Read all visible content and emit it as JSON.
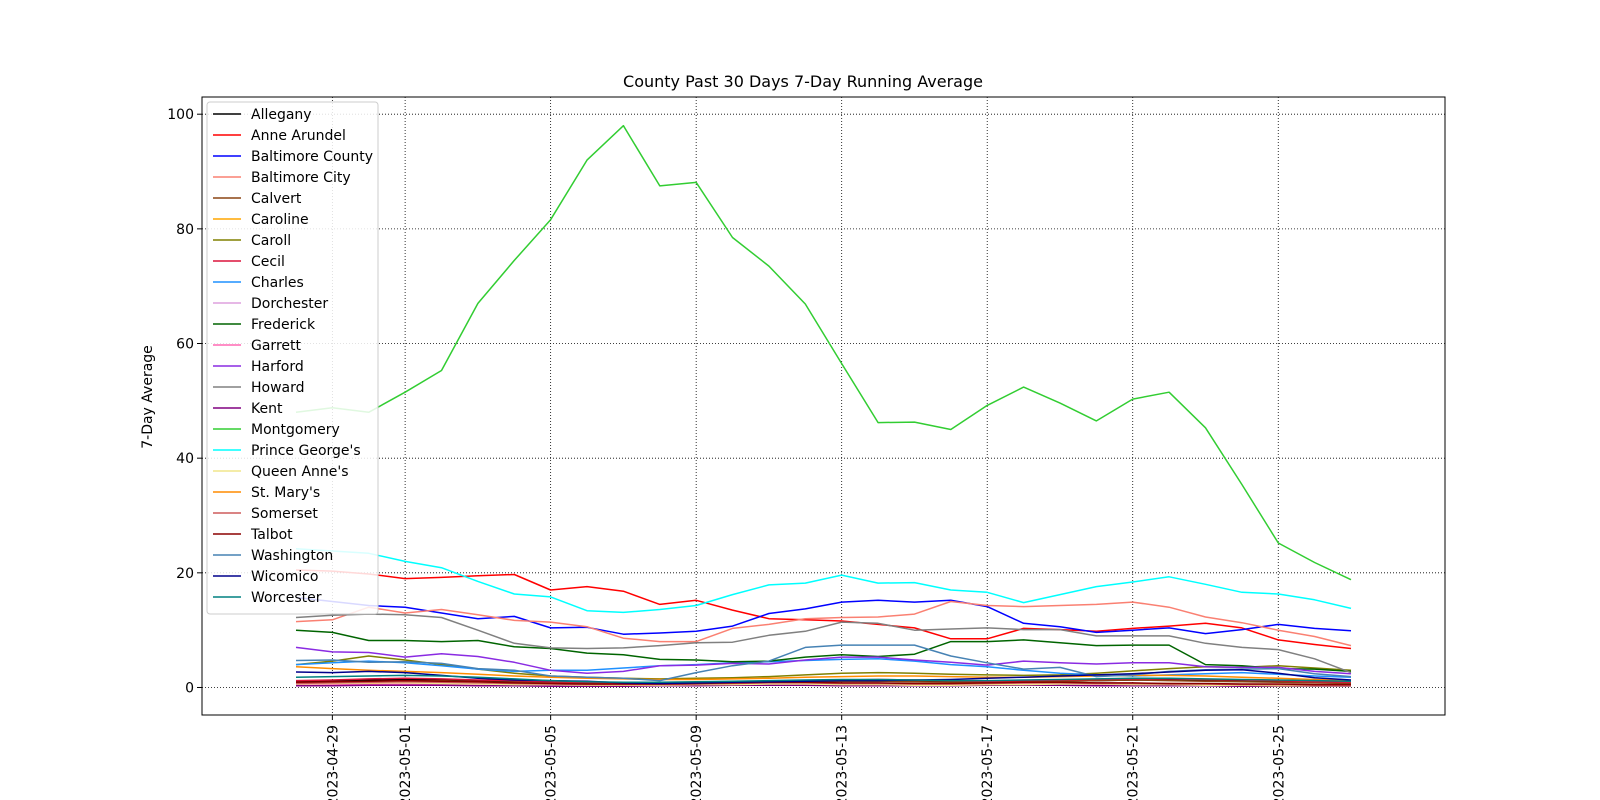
{
  "chart_data": {
    "type": "line",
    "title": "County Past 30 Days 7-Day Running Average",
    "xlabel": "",
    "ylabel": "7-Day Average",
    "x": [
      "2023-04-28",
      "2023-04-29",
      "2023-04-30",
      "2023-05-01",
      "2023-05-02",
      "2023-05-03",
      "2023-05-04",
      "2023-05-05",
      "2023-05-06",
      "2023-05-07",
      "2023-05-08",
      "2023-05-09",
      "2023-05-10",
      "2023-05-11",
      "2023-05-12",
      "2023-05-13",
      "2023-05-14",
      "2023-05-15",
      "2023-05-16",
      "2023-05-17",
      "2023-05-18",
      "2023-05-19",
      "2023-05-20",
      "2023-05-21",
      "2023-05-22",
      "2023-05-23",
      "2023-05-24",
      "2023-05-25",
      "2023-05-26",
      "2023-05-27"
    ],
    "x_ticks": [
      "2023-04-29",
      "2023-05-01",
      "2023-05-05",
      "2023-05-09",
      "2023-05-13",
      "2023-05-17",
      "2023-05-21",
      "2023-05-25"
    ],
    "xlim": [
      "2023-04-25T10:00",
      "2023-05-29T14:00"
    ],
    "ylim": [
      -4.8,
      103
    ],
    "y_ticks": [
      0,
      20,
      40,
      60,
      80,
      100
    ],
    "grid": true,
    "legend_position": "upper-left",
    "series": [
      {
        "name": "Allegany",
        "color": "#000000",
        "values": [
          1,
          1.2,
          1.3,
          1.4,
          1.3,
          1.2,
          1.1,
          1,
          0.9,
          0.8,
          0.7,
          0.7,
          0.8,
          0.9,
          1,
          1.1,
          1.2,
          1.2,
          1.1,
          1,
          1,
          1.1,
          1.2,
          1.3,
          1.3,
          1.2,
          1.1,
          1,
          1,
          1
        ]
      },
      {
        "name": "Anne Arundel",
        "color": "#ff0000",
        "values": [
          20.5,
          20.3,
          19.8,
          19,
          19.2,
          19.5,
          19.7,
          17,
          17.6,
          16.8,
          14.5,
          15.2,
          13.5,
          12,
          11.8,
          11.6,
          11,
          10.4,
          8.5,
          8.5,
          10.3,
          10.1,
          9.8,
          10.3,
          10.7,
          11.2,
          10.4,
          8.3,
          7.5,
          6.8
        ]
      },
      {
        "name": "Baltimore County",
        "color": "#0000ff",
        "values": [
          15.7,
          15,
          14.3,
          14,
          13,
          12,
          12.4,
          10.4,
          10.5,
          9.3,
          9.5,
          9.8,
          10.7,
          12.9,
          13.7,
          14.9,
          15.2,
          14.9,
          15.2,
          14.1,
          11.2,
          10.6,
          9.6,
          10,
          10.4,
          9.4,
          10.1,
          11,
          10.3,
          9.9
        ]
      },
      {
        "name": "Baltimore City",
        "color": "#fa8072",
        "values": [
          11.5,
          11.8,
          14,
          13,
          13.6,
          12.7,
          11.7,
          11.4,
          10.6,
          8.6,
          8,
          8,
          10.3,
          11,
          12,
          12.2,
          12.3,
          12.8,
          15,
          14.3,
          14.1,
          14.3,
          14.5,
          14.9,
          14,
          12.3,
          11.3,
          10,
          8.9,
          7.3
        ]
      },
      {
        "name": "Calvert",
        "color": "#8b4513",
        "values": [
          0.8,
          0.9,
          1,
          1.1,
          1.2,
          1,
          0.9,
          0.8,
          0.7,
          0.6,
          0.6,
          0.7,
          0.8,
          0.9,
          1,
          1.1,
          1.1,
          1,
          0.9,
          0.9,
          1,
          1.1,
          1.2,
          1.3,
          1.2,
          1.1,
          1,
          0.9,
          0.8,
          0.7
        ]
      },
      {
        "name": "Caroline",
        "color": "#ffa500",
        "values": [
          0.5,
          0.6,
          0.7,
          0.8,
          0.7,
          0.6,
          0.5,
          0.5,
          0.4,
          0.4,
          0.5,
          0.6,
          0.6,
          0.5,
          0.5,
          0.4,
          0.4,
          0.5,
          0.6,
          0.7,
          0.6,
          0.5,
          0.5,
          0.6,
          0.7,
          0.6,
          0.5,
          0.5,
          0.4,
          0.4
        ]
      },
      {
        "name": "Caroll",
        "color": "#808000",
        "values": [
          4,
          4.6,
          5.5,
          4.8,
          4,
          3.2,
          2.5,
          2,
          1.8,
          1.6,
          1.5,
          1.6,
          1.7,
          1.9,
          2.2,
          2.5,
          2.6,
          2.5,
          2.3,
          2.2,
          2.1,
          2.2,
          2.5,
          2.9,
          3.3,
          3.6,
          3.5,
          3.8,
          3.4,
          3
        ]
      },
      {
        "name": "Cecil",
        "color": "#dc143c",
        "values": [
          1.2,
          1.3,
          1.5,
          1.6,
          1.5,
          1.3,
          1.2,
          1,
          0.9,
          0.8,
          0.8,
          0.9,
          1,
          1.1,
          1.2,
          1.3,
          1.4,
          1.3,
          1.2,
          1.1,
          1.2,
          1.3,
          1.4,
          1.5,
          1.5,
          1.4,
          1.3,
          1.2,
          1,
          0.9
        ]
      },
      {
        "name": "Charles",
        "color": "#1e90ff",
        "values": [
          4,
          4.3,
          4.6,
          4.3,
          3.8,
          3.2,
          2.8,
          3,
          3,
          3.4,
          3.8,
          4,
          4.3,
          4.5,
          4.7,
          4.9,
          5,
          4.6,
          4,
          3.6,
          3,
          2.5,
          2.2,
          2,
          2.2,
          2.4,
          2.6,
          2.3,
          2,
          1.8
        ]
      },
      {
        "name": "Dorchester",
        "color": "#dda0dd",
        "values": [
          0.6,
          0.7,
          0.8,
          0.9,
          0.8,
          0.7,
          0.6,
          0.5,
          0.5,
          0.4,
          0.4,
          0.5,
          0.6,
          0.7,
          0.7,
          0.6,
          0.6,
          0.5,
          0.5,
          0.6,
          0.7,
          0.8,
          0.8,
          0.7,
          0.6,
          0.6,
          0.5,
          0.5,
          0.4,
          0.4
        ]
      },
      {
        "name": "Frederick",
        "color": "#006400",
        "values": [
          10,
          9.6,
          8.2,
          8.2,
          8,
          8.2,
          7.1,
          6.8,
          6,
          5.7,
          4.9,
          4.8,
          4.5,
          4.6,
          5.3,
          5.7,
          5.4,
          5.8,
          8,
          8,
          8.3,
          7.8,
          7.3,
          7.4,
          7.4,
          4,
          3.8,
          3.3,
          3.2,
          2.8
        ]
      },
      {
        "name": "Garrett",
        "color": "#ff69b4",
        "values": [
          0.4,
          0.5,
          0.5,
          0.6,
          0.6,
          0.5,
          0.4,
          0.4,
          0.3,
          0.3,
          0.4,
          0.5,
          0.5,
          0.6,
          0.6,
          0.5,
          0.5,
          0.4,
          0.4,
          0.5,
          0.6,
          0.6,
          0.5,
          0.5,
          0.4,
          0.4,
          0.3,
          0.3,
          0.3,
          0.3
        ]
      },
      {
        "name": "Harford",
        "color": "#8a2be2",
        "values": [
          7,
          6.2,
          6.1,
          5.3,
          5.9,
          5.4,
          4.4,
          3,
          2.5,
          2.8,
          3.8,
          3.9,
          4.2,
          4.1,
          4.8,
          5.3,
          5.3,
          4.8,
          4.4,
          3.9,
          4.6,
          4.3,
          4.1,
          4.3,
          4.3,
          3.6,
          3.5,
          3.5,
          2.8,
          2.4
        ]
      },
      {
        "name": "Howard",
        "color": "#808080",
        "values": [
          12.2,
          12.6,
          12.8,
          12.7,
          12.2,
          10,
          7.7,
          6.9,
          6.8,
          6.9,
          7.3,
          7.8,
          7.9,
          9.1,
          9.8,
          11.4,
          11.2,
          10,
          10.2,
          10.4,
          10.1,
          10.1,
          9,
          9,
          9,
          7.7,
          7,
          6.6,
          5,
          2.6
        ]
      },
      {
        "name": "Kent",
        "color": "#800080",
        "values": [
          0.3,
          0.3,
          0.4,
          0.4,
          0.4,
          0.3,
          0.3,
          0.2,
          0.2,
          0.2,
          0.3,
          0.3,
          0.4,
          0.4,
          0.4,
          0.3,
          0.3,
          0.3,
          0.3,
          0.4,
          0.4,
          0.4,
          0.3,
          0.3,
          0.3,
          0.3,
          0.2,
          0.2,
          0.2,
          0.2
        ]
      },
      {
        "name": "Montgomery",
        "color": "#32cd32",
        "values": [
          48,
          48.8,
          48,
          51.5,
          55.3,
          67,
          74.5,
          81.6,
          92,
          98,
          87.5,
          88.1,
          78.5,
          73.5,
          66.9,
          56.5,
          46.2,
          46.3,
          45,
          49.2,
          52.4,
          49.6,
          46.5,
          50.3,
          51.5,
          45.3,
          35.4,
          25.2,
          21.8,
          18.8
        ]
      },
      {
        "name": "Prince George's",
        "color": "#00ffff",
        "values": [
          24.2,
          23.8,
          23.4,
          22,
          20.9,
          18.5,
          16.3,
          15.8,
          13.4,
          13.1,
          13.6,
          14.3,
          16.2,
          17.9,
          18.2,
          19.6,
          18.2,
          18.3,
          17,
          16.6,
          14.8,
          16.2,
          17.6,
          18.4,
          19.3,
          18,
          16.6,
          16.3,
          15.3,
          13.8
        ]
      },
      {
        "name": "Queen Anne's",
        "color": "#f0e68c",
        "values": [
          0.6,
          0.7,
          0.8,
          0.8,
          0.7,
          0.6,
          0.5,
          0.5,
          0.4,
          0.4,
          0.4,
          0.5,
          0.5,
          0.6,
          0.6,
          0.5,
          0.5,
          0.4,
          0.4,
          0.5,
          0.5,
          0.6,
          0.6,
          0.5,
          0.5,
          0.4,
          0.4,
          0.3,
          0.3,
          0.3
        ]
      },
      {
        "name": "St. Mary's",
        "color": "#ff8c00",
        "values": [
          3.6,
          3.3,
          3,
          2.8,
          2.6,
          2.3,
          2,
          1.8,
          1.6,
          1.5,
          1.4,
          1.4,
          1.5,
          1.6,
          1.8,
          1.9,
          2,
          2,
          1.9,
          1.8,
          1.8,
          1.9,
          2,
          2.1,
          2.1,
          2,
          1.8,
          1.6,
          1.4,
          1.2
        ]
      },
      {
        "name": "Somerset",
        "color": "#cd5c5c",
        "values": [
          0.7,
          0.8,
          0.9,
          1,
          0.9,
          0.8,
          0.7,
          0.6,
          0.5,
          0.5,
          0.5,
          0.6,
          0.7,
          0.8,
          0.8,
          0.7,
          0.7,
          0.6,
          0.6,
          0.7,
          0.8,
          0.8,
          0.7,
          0.7,
          0.6,
          0.6,
          0.5,
          0.5,
          0.4,
          0.4
        ]
      },
      {
        "name": "Talbot",
        "color": "#8b0000",
        "values": [
          0.9,
          1,
          1.1,
          1.2,
          1.1,
          1,
          0.8,
          0.7,
          0.6,
          0.6,
          0.6,
          0.7,
          0.8,
          0.9,
          0.9,
          0.8,
          0.8,
          0.7,
          0.7,
          0.8,
          0.9,
          0.9,
          0.8,
          0.8,
          0.7,
          0.7,
          0.6,
          0.6,
          0.5,
          0.5
        ]
      },
      {
        "name": "Washington",
        "color": "#4682b4",
        "values": [
          4.7,
          4.8,
          4.4,
          4.5,
          4.2,
          3.3,
          3,
          2,
          1.8,
          1.6,
          1.2,
          2.6,
          3.8,
          4.6,
          7,
          7.4,
          7.4,
          7.4,
          5.5,
          4.3,
          3.2,
          3.5,
          1.9,
          2.2,
          2.8,
          3.1,
          3.2,
          3.3,
          2.4,
          1.9
        ]
      },
      {
        "name": "Wicomico",
        "color": "#00008b",
        "values": [
          2.7,
          2.6,
          2.8,
          2.6,
          2.1,
          1.6,
          1.3,
          1.2,
          1.1,
          0.8,
          0.7,
          0.8,
          0.9,
          1,
          1.1,
          1.2,
          1.2,
          1.3,
          1.4,
          1.6,
          1.8,
          2,
          2.2,
          2.4,
          2.7,
          3,
          3.1,
          2.5,
          1.7,
          1.3
        ]
      },
      {
        "name": "Worcester",
        "color": "#008080",
        "values": [
          1.8,
          1.9,
          2,
          2.1,
          2,
          1.8,
          1.5,
          1.2,
          1,
          0.9,
          0.9,
          1,
          1.1,
          1.2,
          1.3,
          1.4,
          1.4,
          1.3,
          1.2,
          1.2,
          1.3,
          1.4,
          1.5,
          1.6,
          1.6,
          1.5,
          1.4,
          1.3,
          1.2,
          1.1
        ]
      }
    ]
  }
}
